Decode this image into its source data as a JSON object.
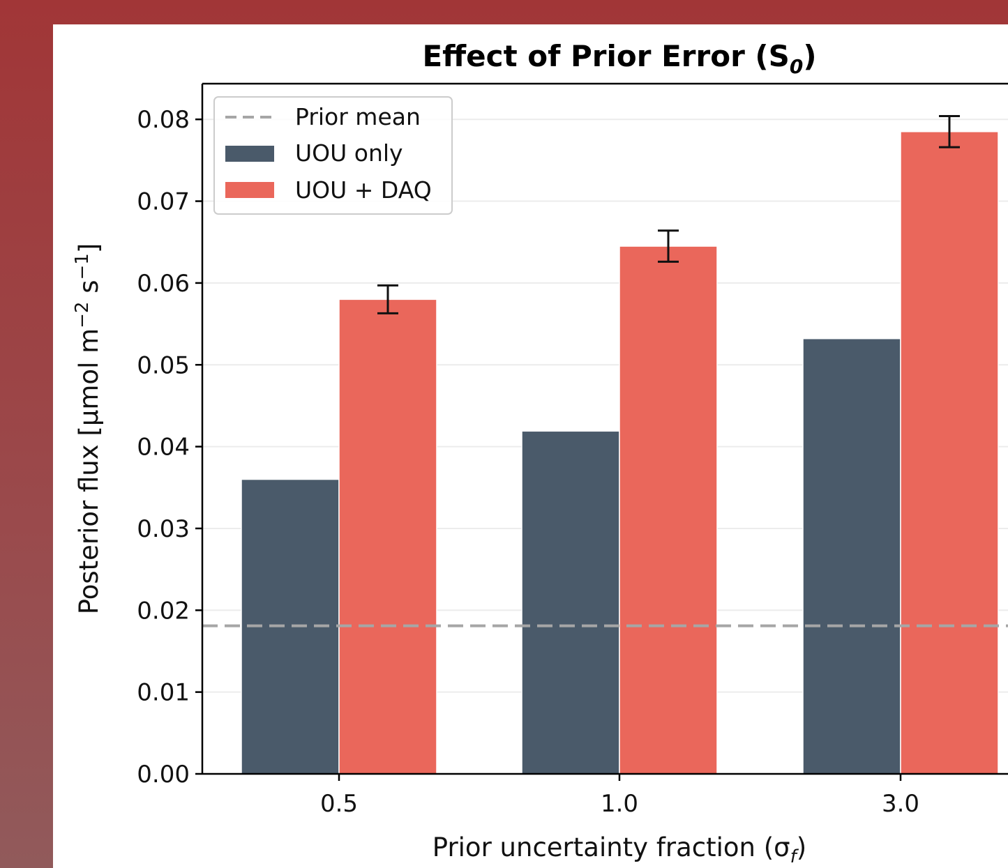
{
  "chart_data": {
    "type": "bar",
    "title": "Effect of Prior Error (S",
    "title_sub": "0",
    "title_close": ")",
    "xlabel": "Prior uncertainty fraction (σ",
    "xlabel_sub": "f",
    "xlabel_close": ")",
    "ylabel": "Posterior flux [μmol m",
    "ylabel_sup1": "−2",
    "ylabel_mid": " s",
    "ylabel_sup2": "−1",
    "ylabel_close": "]",
    "categories": [
      "0.5",
      "1.0",
      "3.0"
    ],
    "ylim": [
      0,
      0.085
    ],
    "yticks": [
      "0.00",
      "0.01",
      "0.02",
      "0.03",
      "0.04",
      "0.05",
      "0.06",
      "0.07",
      "0.08"
    ],
    "series": [
      {
        "name": "UOU only",
        "values": [
          0.036,
          0.0419,
          0.0532
        ],
        "color": "#4a5a6a"
      },
      {
        "name": "UOU + DAQ",
        "values": [
          0.058,
          0.0645,
          0.0785
        ],
        "errors": [
          0.0017,
          0.0019,
          0.0019
        ],
        "color": "#ea675b"
      }
    ],
    "reference_line": {
      "name": "Prior mean",
      "value": 0.0181,
      "color": "#a6a6a6",
      "style": "dashed"
    },
    "grid": true,
    "legend_position": "top-left"
  }
}
